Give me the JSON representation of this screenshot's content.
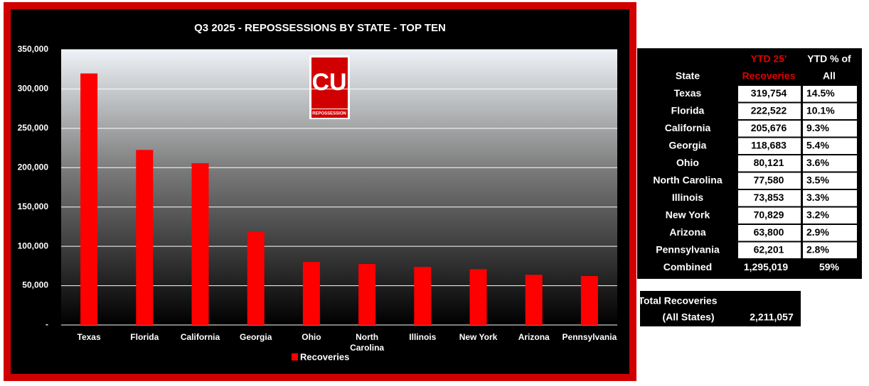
{
  "chart_data": {
    "type": "bar",
    "title": "Q3 2025 - REPOSSESSIONS BY STATE - TOP TEN",
    "categories": [
      "Texas",
      "Florida",
      "California",
      "Georgia",
      "Ohio",
      "North Carolina",
      "Illinois",
      "New York",
      "Arizona",
      "Pennsylvania"
    ],
    "series": [
      {
        "name": "Recoveries",
        "color": "#ff0000",
        "values": [
          319754,
          222522,
          205676,
          118683,
          80121,
          77580,
          73853,
          70829,
          63800,
          62201
        ]
      }
    ],
    "ylim": [
      0,
      350000
    ],
    "yticks": [
      {
        "value": 0,
        "label": "-"
      },
      {
        "value": 50000,
        "label": "50,000"
      },
      {
        "value": 100000,
        "label": "100,000"
      },
      {
        "value": 150000,
        "label": "150,000"
      },
      {
        "value": 200000,
        "label": "200,000"
      },
      {
        "value": 250000,
        "label": "250,000"
      },
      {
        "value": 300000,
        "label": "300,000"
      },
      {
        "value": 350000,
        "label": "350,000"
      }
    ],
    "grid": true,
    "legend": "bottom"
  },
  "logo": {
    "text": "CU",
    "caption": "REPOSSESSION"
  },
  "table": {
    "headers": {
      "state": "State",
      "recoveries": [
        "YTD 25'",
        "Recoveries"
      ],
      "share": [
        "YTD % of",
        "All"
      ]
    },
    "rows": [
      [
        "Texas",
        "319,754",
        "14.5%"
      ],
      [
        "Florida",
        "222,522",
        "10.1%"
      ],
      [
        "California",
        "205,676",
        "9.3%"
      ],
      [
        "Georgia",
        "118,683",
        "5.4%"
      ],
      [
        "Ohio",
        "80,121",
        "3.6%"
      ],
      [
        "North Carolina",
        "77,580",
        "3.5%"
      ],
      [
        "Illinois",
        "73,853",
        "3.3%"
      ],
      [
        "New York",
        "70,829",
        "3.2%"
      ],
      [
        "Arizona",
        "63,800",
        "2.9%"
      ],
      [
        "Pennsylvania",
        "62,201",
        "2.8%"
      ]
    ],
    "total_row": [
      "Combined",
      "1,295,019",
      "59%"
    ]
  },
  "total_box": {
    "label": [
      "Total Recoveries",
      "(All States)"
    ],
    "value": "2,211,057"
  }
}
